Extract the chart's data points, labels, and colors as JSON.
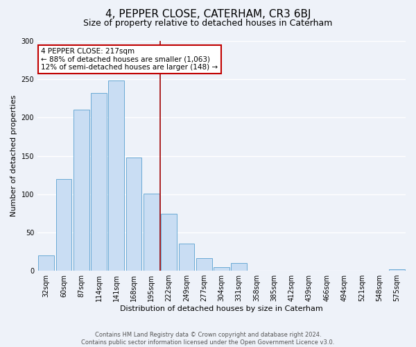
{
  "title": "4, PEPPER CLOSE, CATERHAM, CR3 6BJ",
  "subtitle": "Size of property relative to detached houses in Caterham",
  "xlabel": "Distribution of detached houses by size in Caterham",
  "ylabel": "Number of detached properties",
  "bar_labels": [
    "32sqm",
    "60sqm",
    "87sqm",
    "114sqm",
    "141sqm",
    "168sqm",
    "195sqm",
    "222sqm",
    "249sqm",
    "277sqm",
    "304sqm",
    "331sqm",
    "358sqm",
    "385sqm",
    "412sqm",
    "439sqm",
    "466sqm",
    "494sqm",
    "521sqm",
    "548sqm",
    "575sqm"
  ],
  "bar_values": [
    20,
    120,
    210,
    232,
    248,
    148,
    101,
    74,
    35,
    16,
    5,
    10,
    0,
    0,
    0,
    0,
    0,
    0,
    0,
    0,
    2
  ],
  "bar_color": "#c9ddf3",
  "bar_edge_color": "#6aaad4",
  "vline_color": "#a00000",
  "ylim": [
    0,
    300
  ],
  "yticks": [
    0,
    50,
    100,
    150,
    200,
    250,
    300
  ],
  "annotation_title": "4 PEPPER CLOSE: 217sqm",
  "annotation_line1": "← 88% of detached houses are smaller (1,063)",
  "annotation_line2": "12% of semi-detached houses are larger (148) →",
  "annotation_box_color": "#ffffff",
  "annotation_box_edge": "#c00000",
  "footer1": "Contains HM Land Registry data © Crown copyright and database right 2024.",
  "footer2": "Contains public sector information licensed under the Open Government Licence v3.0.",
  "bg_color": "#eef2f9",
  "grid_color": "#ffffff",
  "title_fontsize": 11,
  "subtitle_fontsize": 9,
  "axis_label_fontsize": 8,
  "tick_fontsize": 7,
  "footer_fontsize": 6
}
